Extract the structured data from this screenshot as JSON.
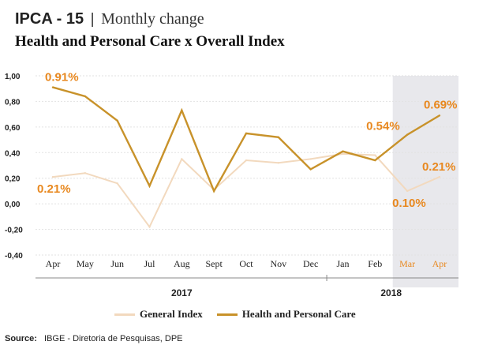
{
  "header": {
    "title_main": "IPCA - 15",
    "title_sep": "|",
    "title_sub": "Monthly change",
    "subtitle": "Health and Personal Care x Overall Index"
  },
  "colors": {
    "health": "#C8922A",
    "general": "#F2D9BE",
    "highlight_label": "#E8881F",
    "shade": "#E8E8EC",
    "axis_text": "#222222",
    "month_2018": "#E8881F"
  },
  "chart_data": {
    "type": "line",
    "categories": [
      "Apr",
      "May",
      "Jun",
      "Jul",
      "Aug",
      "Sept",
      "Oct",
      "Nov",
      "Dec",
      "Jan",
      "Feb",
      "Mar",
      "Apr"
    ],
    "years": [
      {
        "label": "2017",
        "from_index": 0,
        "to_index": 8
      },
      {
        "label": "2018",
        "from_index": 9,
        "to_index": 12
      }
    ],
    "series": [
      {
        "name": "General Index",
        "key": "general",
        "values": [
          0.21,
          0.24,
          0.16,
          -0.18,
          0.35,
          0.11,
          0.34,
          0.32,
          0.35,
          0.39,
          0.38,
          0.1,
          0.21
        ]
      },
      {
        "name": "Health and Personal Care",
        "key": "health",
        "values": [
          0.91,
          0.84,
          0.65,
          0.14,
          0.73,
          0.1,
          0.55,
          0.52,
          0.27,
          0.41,
          0.34,
          0.54,
          0.69
        ]
      }
    ],
    "y_ticks": [
      "1,00",
      "0,80",
      "0,60",
      "0,40",
      "0,20",
      "0,00",
      "-0,20",
      "-0,40"
    ],
    "y_tick_values": [
      1.0,
      0.8,
      0.6,
      0.4,
      0.2,
      0.0,
      -0.2,
      -0.4
    ],
    "ylim": [
      -0.4,
      1.0
    ],
    "highlighted_indices": [
      11,
      12
    ],
    "annotations": [
      {
        "text": "0.91%",
        "series": "health",
        "index": 0
      },
      {
        "text": "0.21%",
        "series": "general",
        "index": 0
      },
      {
        "text": "0.54%",
        "series": "health",
        "index": 11
      },
      {
        "text": "0.69%",
        "series": "health",
        "index": 12
      },
      {
        "text": "0.10%",
        "series": "general",
        "index": 11
      },
      {
        "text": "0.21%",
        "series": "general",
        "index": 12
      }
    ],
    "legend_position": "bottom",
    "grid": true
  },
  "legend": {
    "general": "General Index",
    "health": "Health and Personal Care"
  },
  "source": {
    "label": "Source:",
    "text": "IBGE - Diretoria de Pesquisas, DPE"
  }
}
